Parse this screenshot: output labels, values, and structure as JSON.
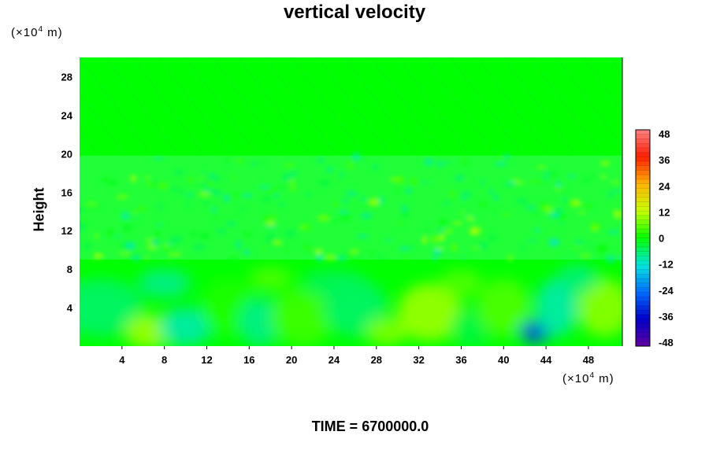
{
  "chart_data": {
    "type": "heatmap",
    "title": "vertical velocity",
    "ylabel": "Height",
    "x_unit": {
      "prefix": "(×10",
      "exp": "4",
      "suffix": " m)"
    },
    "y_unit": {
      "prefix": "(×10",
      "exp": "4",
      "suffix": " m)"
    },
    "x_ticks": [
      "4",
      "8",
      "12",
      "16",
      "20",
      "24",
      "28",
      "32",
      "36",
      "40",
      "44",
      "48"
    ],
    "y_ticks": [
      "4",
      "8",
      "12",
      "16",
      "20",
      "24",
      "28"
    ],
    "xlim": [
      0,
      51.2
    ],
    "ylim": [
      0,
      30
    ],
    "colorbar": {
      "ticks": [
        "48",
        "36",
        "24",
        "12",
        "0",
        "-12",
        "-24",
        "-36",
        "-48"
      ],
      "range": [
        -48,
        48
      ]
    },
    "field_summary": [
      {
        "band": "0-9",
        "description": "large smooth cells",
        "features": [
          {
            "x": 6.5,
            "y": 1.5,
            "value": 10
          },
          {
            "x": 33,
            "y": 3.5,
            "value": 8
          },
          {
            "x": 43,
            "y": 1.5,
            "value": -28
          }
        ]
      },
      {
        "band": "9-20",
        "description": "small-scale turbulent fluctuations, values within about ±12"
      },
      {
        "band": "20-30",
        "description": "near zero, faint wave pattern"
      }
    ]
  },
  "footer": {
    "time_label": "TIME = 6700000.0"
  },
  "colors": {
    "background_field": "#00ff00"
  }
}
